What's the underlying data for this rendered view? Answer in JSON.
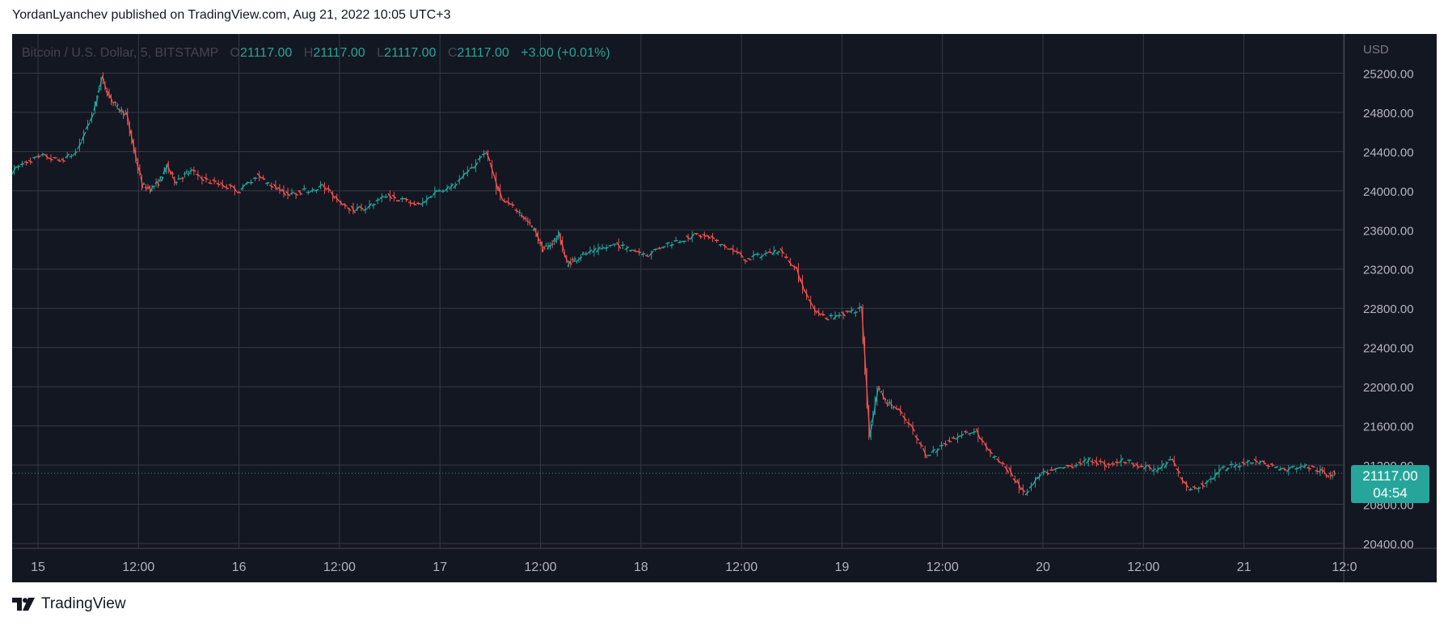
{
  "header": {
    "text": "YordanLyanchev published on TradingView.com, Aug 21, 2022 10:05 UTC+3"
  },
  "legend": {
    "symbol": "Bitcoin / U.S. Dollar, 5, BITSTAMP",
    "o_label": "O",
    "o_value": "21117.00",
    "h_label": "H",
    "h_value": "21117.00",
    "l_label": "L",
    "l_value": "21117.00",
    "c_label": "C",
    "c_value": "21117.00",
    "change": "+3.00 (+0.01%)"
  },
  "price_badge": {
    "price": "21117.00",
    "countdown": "04:54"
  },
  "brand": {
    "name": "TradingView"
  },
  "colors": {
    "background": "#131722",
    "grid": "#363a45",
    "up": "#26a69a",
    "down": "#ef5350",
    "axis_text": "#b2b5be"
  },
  "chart_data": {
    "type": "line",
    "currency_label": "USD",
    "y_ticks": [
      "25200.00",
      "24800.00",
      "24400.00",
      "24000.00",
      "23600.00",
      "23200.00",
      "22800.00",
      "22400.00",
      "22000.00",
      "21600.00",
      "21200.00",
      "20800.00",
      "20400.00"
    ],
    "x_ticks": [
      "15",
      "12:00",
      "16",
      "12:00",
      "17",
      "12:00",
      "18",
      "12:00",
      "19",
      "12:00",
      "20",
      "12:00",
      "21",
      "12:0"
    ],
    "ylim": [
      20350,
      25600
    ],
    "xlim": [
      0,
      163
    ],
    "grid": true,
    "last_price": 21117,
    "x": [
      0,
      2,
      4,
      6,
      8,
      10,
      11,
      12,
      13,
      14,
      15,
      16,
      17,
      18,
      19,
      20,
      21,
      22,
      24,
      26,
      28,
      30,
      32,
      34,
      36,
      38,
      40,
      42,
      44,
      46,
      48,
      50,
      52,
      54,
      56,
      58,
      60,
      62,
      63,
      64,
      65,
      66,
      67,
      68,
      69,
      70,
      72,
      74,
      76,
      78,
      80,
      82,
      84,
      86,
      88,
      90,
      92,
      94,
      96,
      98,
      100,
      102,
      104,
      105,
      106,
      107,
      108,
      110,
      112,
      114,
      116,
      118,
      120,
      122,
      124,
      126,
      128,
      130,
      132,
      134,
      136,
      138,
      140,
      142,
      144,
      146,
      148,
      150,
      152,
      154,
      156,
      158,
      160,
      161,
      162
    ],
    "y": [
      24200,
      24300,
      24350,
      24300,
      24400,
      24800,
      25150,
      24950,
      24850,
      24780,
      24400,
      24050,
      24020,
      24080,
      24250,
      24100,
      24150,
      24200,
      24100,
      24050,
      24000,
      24150,
      24050,
      23950,
      24000,
      24050,
      23900,
      23800,
      23850,
      23950,
      23900,
      23850,
      24000,
      24050,
      24200,
      24400,
      23900,
      23800,
      23700,
      23600,
      23400,
      23450,
      23550,
      23250,
      23300,
      23350,
      23400,
      23450,
      23400,
      23350,
      23450,
      23500,
      23550,
      23500,
      23400,
      23300,
      23350,
      23400,
      23200,
      22800,
      22700,
      22750,
      22800,
      21500,
      22000,
      21850,
      21800,
      21600,
      21300,
      21400,
      21500,
      21550,
      21300,
      21150,
      20900,
      21100,
      21150,
      21200,
      21250,
      21200,
      21250,
      21200,
      21150,
      21250,
      20950,
      21000,
      21150,
      21200,
      21250,
      21200,
      21150,
      21200,
      21150,
      21100,
      21117
    ]
  }
}
